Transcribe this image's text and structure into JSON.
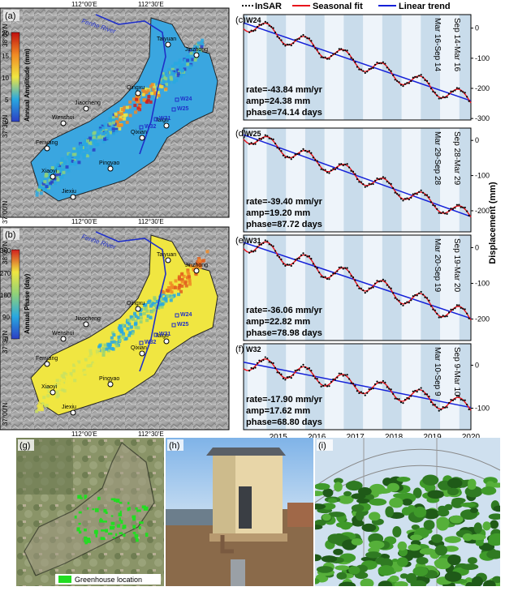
{
  "maps": {
    "a": {
      "panel": "(a)",
      "cb_title": "Annual Amplitude (mm)",
      "cb_ticks": [
        "0",
        "5",
        "10",
        "15",
        "20"
      ],
      "lon_ticks": [
        "112°00'E",
        "112°30'E"
      ],
      "lat_ticks": [
        "38°00'N",
        "37°30'N",
        "37°00'N"
      ],
      "river": "Fenhe River",
      "cities": [
        "Taiyuan",
        "Qingxu",
        "Jiaocheng",
        "Jinzhong",
        "Wenshui",
        "Taigu",
        "Qixian",
        "Fenyang",
        "Pingyao",
        "Xiaoyi",
        "Jiexiu"
      ],
      "wells": [
        "W24",
        "W25",
        "W31",
        "W32"
      ],
      "colors": [
        "#2c3fc4",
        "#29a8e0",
        "#8fd17a",
        "#f0e641",
        "#f08a24",
        "#d01f1f"
      ]
    },
    "b": {
      "panel": "(b)",
      "cb_title": "Annual Phase (day)",
      "cb_ticks": [
        "0",
        "90",
        "180",
        "270",
        "360"
      ],
      "lon_ticks": [
        "112°00'E",
        "112°30'E"
      ],
      "lat_ticks": [
        "38°00'N",
        "37°30'N",
        "37°00'N"
      ],
      "river": "Fenhe River",
      "cities": [
        "Taiyuan",
        "Qingxu",
        "Jiaocheng",
        "Jinzhong",
        "Wenshui",
        "Taigu",
        "Qixian",
        "Fenyang",
        "Pingyao",
        "Xiaoyi",
        "Jiexiu"
      ],
      "wells": [
        "W24",
        "W25",
        "W31",
        "W32"
      ]
    }
  },
  "legend": {
    "insar": "InSAR",
    "seasonal": "Seasonal fit",
    "linear": "Linear trend"
  },
  "colors": {
    "insar": "#000000",
    "seasonal": "#e8141c",
    "linear": "#1420d8",
    "band": "#c9dceb"
  },
  "ylabel": "Displacement (mm)",
  "years": [
    "2015",
    "2016",
    "2017",
    "2018",
    "2019",
    "2020"
  ],
  "chart_data": [
    {
      "type": "line",
      "panel": "(c)",
      "well": "W24",
      "rate": "rate=-43.84 mm/yr",
      "amp": "amp=24.38 mm",
      "phase": "phase=74.14 days",
      "rate_v": -43.84,
      "amp_v": 24.38,
      "phase_v": 74.14,
      "ylim": [
        -305,
        45
      ],
      "yticks": [
        0,
        -100,
        -200,
        -300
      ],
      "labels": [
        "Mar 16-Sep 14",
        "Sep 14-Mar 16"
      ],
      "x": [
        2014.6,
        2020.5
      ],
      "series": [
        {
          "name": "InSAR"
        },
        {
          "name": "Seasonal fit"
        },
        {
          "name": "Linear trend"
        }
      ]
    },
    {
      "type": "line",
      "panel": "(d)",
      "well": "W25",
      "rate": "rate=-39.40 mm/yr",
      "amp": "amp=19.20 mm",
      "phase": "phase=87.72 days",
      "rate_v": -39.4,
      "amp_v": 19.2,
      "phase_v": 87.72,
      "ylim": [
        -260,
        35
      ],
      "yticks": [
        0,
        -100,
        -200
      ],
      "labels": [
        "Mar 29-Sep 28",
        "Sep 28-Mar 29"
      ],
      "x": [
        2014.6,
        2020.5
      ],
      "series": [
        {
          "name": "InSAR"
        },
        {
          "name": "Seasonal fit"
        },
        {
          "name": "Linear trend"
        }
      ]
    },
    {
      "type": "line",
      "panel": "(e)",
      "well": "W31",
      "rate": "rate=-36.06 mm/yr",
      "amp": "amp=22.82 mm",
      "phase": "phase=78.98 days",
      "rate_v": -36.06,
      "amp_v": 22.82,
      "phase_v": 78.98,
      "ylim": [
        -260,
        35
      ],
      "yticks": [
        0,
        -100,
        -200
      ],
      "labels": [
        "Mar 20-Sep 19",
        "Sep 19-Mar 20"
      ],
      "x": [
        2014.6,
        2020.5
      ],
      "series": [
        {
          "name": "InSAR"
        },
        {
          "name": "Seasonal fit"
        },
        {
          "name": "Linear trend"
        }
      ]
    },
    {
      "type": "line",
      "panel": "(f)",
      "well": "W32",
      "rate": "rate=-17.90 mm/yr",
      "amp": "amp=17.62 mm",
      "phase": "phase=68.80 days",
      "rate_v": -17.9,
      "amp_v": 17.62,
      "phase_v": 68.8,
      "ylim": [
        -150,
        50
      ],
      "yticks": [
        0,
        -100
      ],
      "labels": [
        "Mar 10-Sep 9",
        "Sep 9-Mar 10"
      ],
      "x": [
        2014.6,
        2020.5
      ],
      "series": [
        {
          "name": "InSAR"
        },
        {
          "name": "Seasonal fit"
        },
        {
          "name": "Linear trend"
        }
      ]
    }
  ],
  "photos": {
    "g": {
      "panel": "(g)",
      "legend": "Greenhouse location",
      "green": "#22dd22"
    },
    "h": {
      "panel": "(h)"
    },
    "i": {
      "panel": "(i)"
    }
  }
}
